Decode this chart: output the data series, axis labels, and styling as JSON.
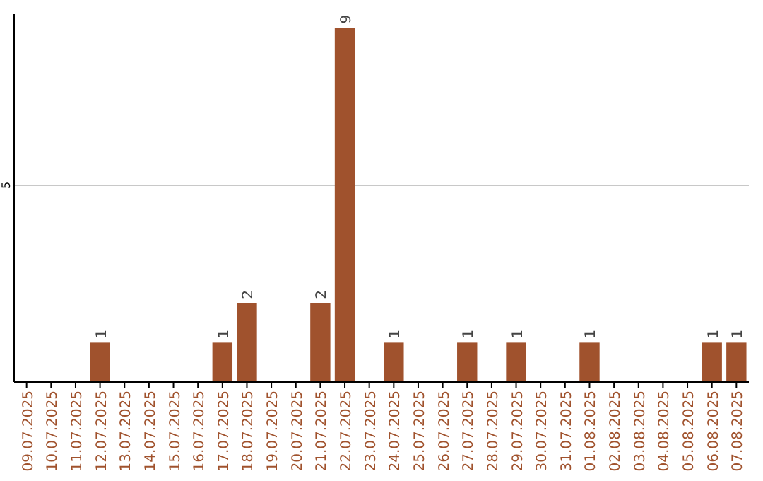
{
  "chart_data": {
    "type": "bar",
    "categories": [
      "09.07.2025",
      "10.07.2025",
      "11.07.2025",
      "12.07.2025",
      "13.07.2025",
      "14.07.2025",
      "15.07.2025",
      "16.07.2025",
      "17.07.2025",
      "18.07.2025",
      "19.07.2025",
      "20.07.2025",
      "21.07.2025",
      "22.07.2025",
      "23.07.2025",
      "24.07.2025",
      "25.07.2025",
      "26.07.2025",
      "27.07.2025",
      "28.07.2025",
      "29.07.2025",
      "30.07.2025",
      "31.07.2025",
      "01.08.2025",
      "02.08.2025",
      "03.08.2025",
      "04.08.2025",
      "05.08.2025",
      "06.08.2025",
      "07.08.2025"
    ],
    "values": [
      0,
      0,
      0,
      1,
      0,
      0,
      0,
      0,
      1,
      2,
      0,
      0,
      2,
      9,
      0,
      1,
      0,
      0,
      1,
      0,
      1,
      0,
      0,
      1,
      0,
      0,
      0,
      0,
      1,
      1
    ],
    "value_labels": [
      null,
      null,
      null,
      "1",
      null,
      null,
      null,
      null,
      "1",
      "2",
      null,
      null,
      "2",
      "9",
      null,
      "1",
      null,
      null,
      "1",
      null,
      "1",
      null,
      null,
      "1",
      null,
      null,
      null,
      null,
      "1",
      "1"
    ],
    "color": "#a0522d",
    "ylim": [
      0,
      9.35
    ],
    "yticks": [
      5
    ],
    "grid": "y"
  }
}
